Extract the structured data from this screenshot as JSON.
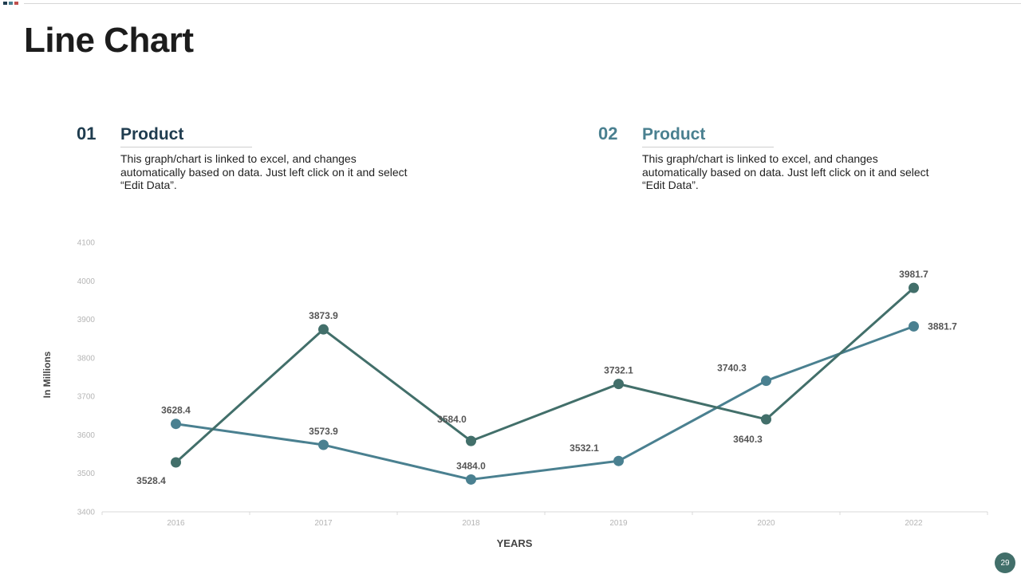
{
  "page": {
    "title": "Line Chart",
    "page_number": "29"
  },
  "colors": {
    "series1": "#426f6a",
    "series2": "#4a8090",
    "num1": "#1f3c4f",
    "num2": "#4a8090",
    "badge": "#426f6a",
    "axis_text": "#b5b5b5",
    "label_text": "#555555",
    "accent_red": "#c0504d"
  },
  "blocks": [
    {
      "num": "01",
      "heading": "Product",
      "description": "This graph/chart is linked to excel, and changes automatically based on data. Just left click on it and select “Edit Data”."
    },
    {
      "num": "02",
      "heading": "Product",
      "description": "This graph/chart is linked to excel, and changes automatically based on data. Just left click on it and select “Edit Data”."
    }
  ],
  "chart_data": {
    "type": "line",
    "title": "",
    "xlabel": "YEARS",
    "ylabel": "In Millions",
    "categories": [
      "2016",
      "2017",
      "2018",
      "2019",
      "2020",
      "2022"
    ],
    "ylim": [
      3400,
      4100
    ],
    "yticks": [
      3400,
      3500,
      3600,
      3700,
      3800,
      3900,
      4000,
      4100
    ],
    "grid": false,
    "legend": "none",
    "series": [
      {
        "values": [
          3528.4,
          3873.9,
          3584.0,
          3732.1,
          3640.3,
          3981.7
        ],
        "labels": [
          "3528.4",
          "3873.9",
          "3584.0",
          "3732.1",
          "3640.3",
          "3981.7"
        ]
      },
      {
        "values": [
          3628.4,
          3573.9,
          3484.0,
          3532.1,
          3740.3,
          3881.7
        ],
        "labels": [
          "3628.4",
          "3573.9",
          "3484.0",
          "3532.1",
          "3740.3",
          "3881.7"
        ]
      }
    ]
  }
}
